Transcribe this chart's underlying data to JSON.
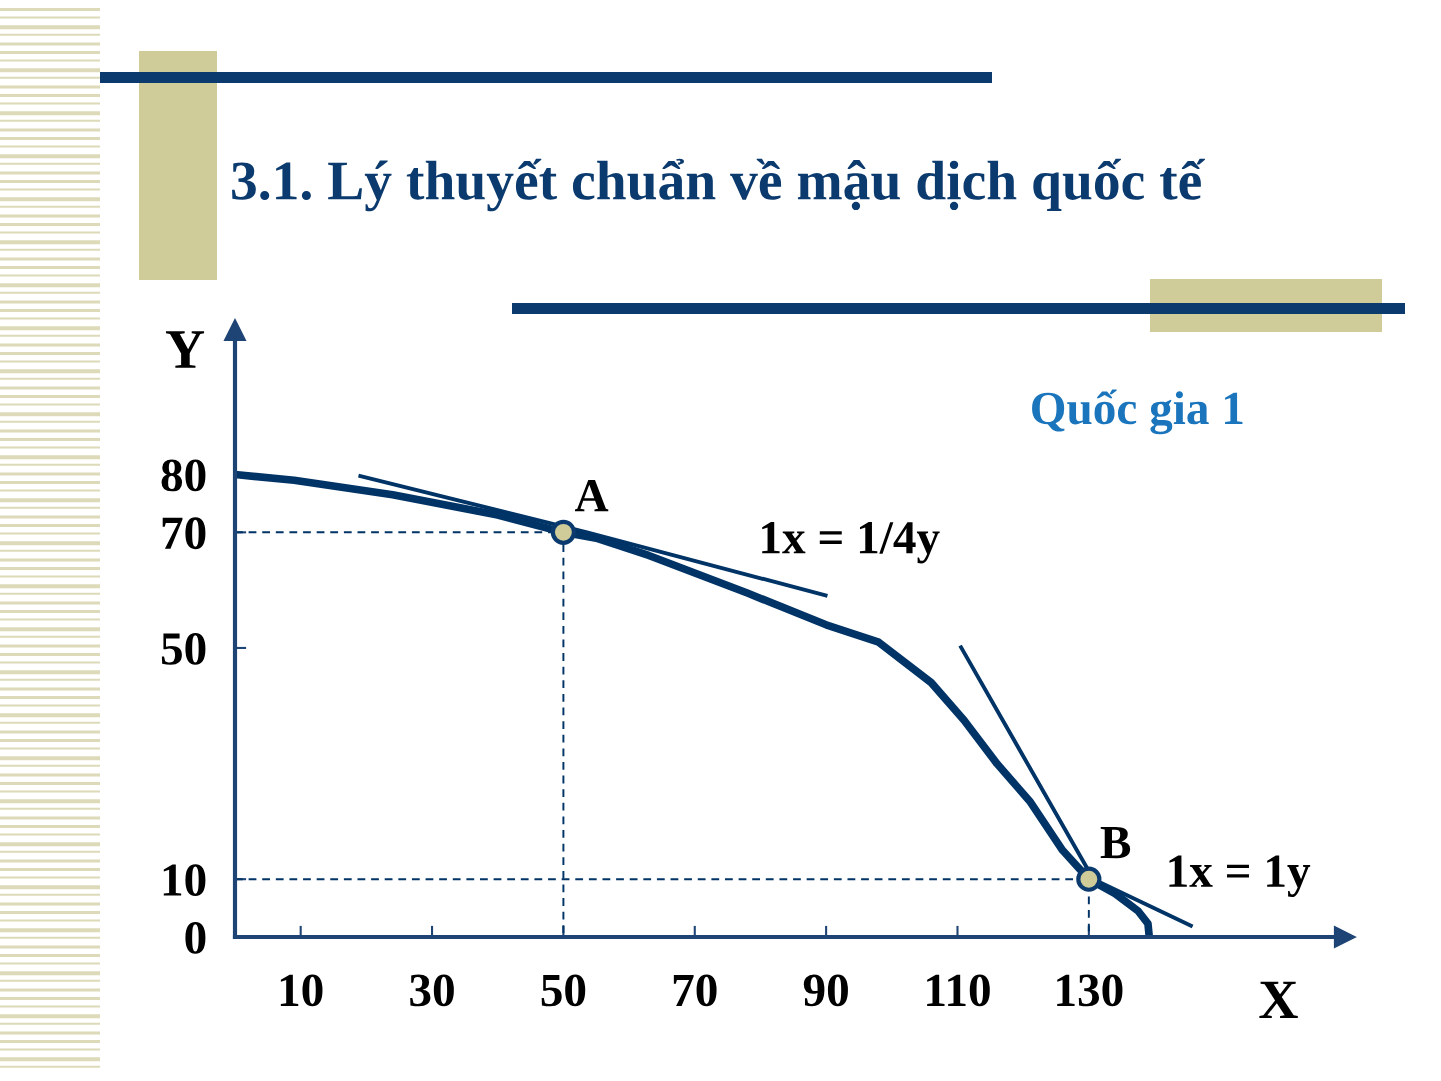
{
  "chart_data": {
    "type": "line",
    "title": "3.1. Lý thuyết chuẩn về mậu dịch quốc tế",
    "xlabel": "X",
    "ylabel": "Y",
    "xlim": [
      0,
      169
    ],
    "ylim": [
      0,
      105
    ],
    "xticks": [
      10,
      30,
      50,
      70,
      90,
      110,
      130
    ],
    "yticks": [
      0,
      10,
      50,
      70,
      80
    ],
    "series": [
      {
        "color": "#003366",
        "x": [
          0,
          9,
          24,
          40,
          50,
          55,
          63,
          78,
          90,
          98,
          106,
          111,
          116,
          121,
          126,
          130,
          134,
          137.5,
          139,
          139.2
        ],
        "values": [
          80,
          79,
          76.5,
          73,
          70,
          69,
          66,
          59.5,
          54,
          51,
          44,
          37.5,
          30,
          23.5,
          15,
          10,
          7.5,
          4.5,
          2.3,
          0
        ]
      },
      {
        "color": "#003366",
        "x": [
          18.8,
          53.6,
          90.2
        ],
        "values": [
          79.8,
          70,
          59
        ]
      },
      {
        "color": "#003366",
        "x": [
          110.4,
          130.7,
          145.8
        ],
        "values": [
          50.4,
          10,
          1.8
        ]
      },
      {
        "color": "#003366",
        "line_style": "dashed",
        "x": [
          0,
          50,
          50
        ],
        "values": [
          70,
          70,
          0
        ]
      },
      {
        "color": "#003366",
        "line_style": "dashed",
        "x": [
          0,
          130,
          130
        ],
        "values": [
          10,
          10,
          0
        ]
      },
      {
        "type": "scatter",
        "color": "#cfcc9a",
        "marker": "circle",
        "x": [
          50,
          130
        ],
        "values": [
          70,
          10
        ]
      }
    ],
    "annotations": [
      "Quốc gia 1",
      {
        "text": "A",
        "x": 50,
        "y": 70
      },
      {
        "text": "B",
        "x": 130,
        "y": 10
      },
      {
        "text": "1x = 1/4y",
        "x": 78,
        "y": 62.7
      },
      {
        "text": "1x = 1y",
        "x": 140,
        "y": 5
      }
    ]
  }
}
